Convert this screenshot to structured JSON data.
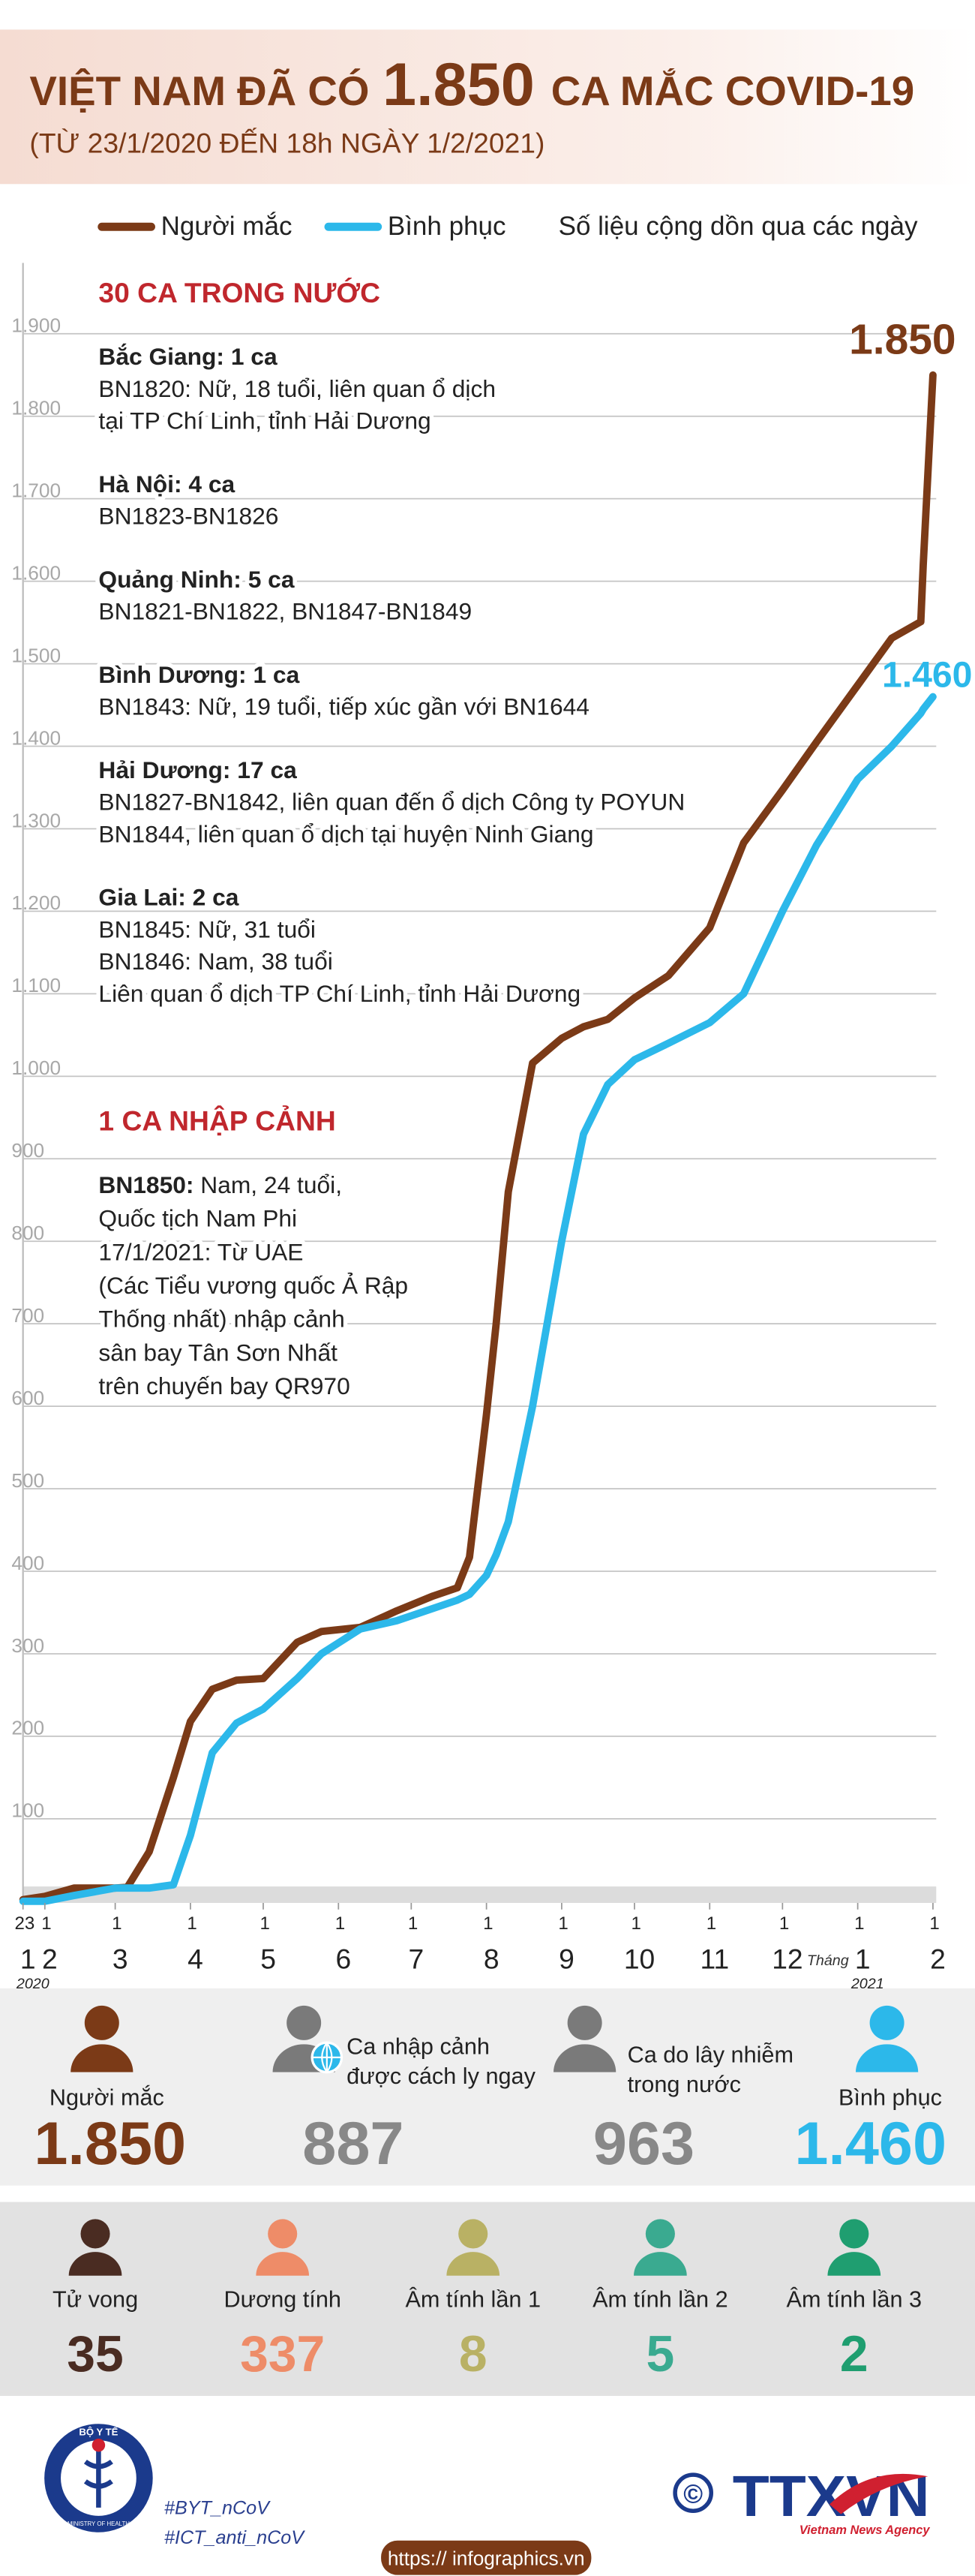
{
  "header": {
    "title_prefix": "VIỆT NAM ĐÃ CÓ",
    "title_number": "1.850",
    "title_suffix": "CA MẮC COVID-19",
    "subtitle": "(TỪ 23/1/2020 ĐẾN 18h NGÀY 1/2/2021)"
  },
  "chart_data": {
    "type": "line",
    "legend_note": "Số liệu cộng dồn qua các ngày",
    "x": [
      "2020-01-23",
      "2020-02-01",
      "2020-02-13",
      "2020-03-01",
      "2020-03-06",
      "2020-03-15",
      "2020-03-25",
      "2020-04-01",
      "2020-04-10",
      "2020-04-20",
      "2020-05-01",
      "2020-05-15",
      "2020-05-25",
      "2020-06-10",
      "2020-06-25",
      "2020-07-10",
      "2020-07-20",
      "2020-07-25",
      "2020-08-01",
      "2020-08-05",
      "2020-08-10",
      "2020-08-20",
      "2020-09-01",
      "2020-09-10",
      "2020-09-20",
      "2020-10-01",
      "2020-10-15",
      "2020-11-01",
      "2020-11-15",
      "2020-12-01",
      "2020-12-15",
      "2021-01-01",
      "2021-01-15",
      "2021-01-27",
      "2021-01-28",
      "2021-02-01"
    ],
    "series": [
      {
        "name": "Người mắc",
        "color": "#7b3a17",
        "values": [
          2,
          6,
          16,
          16,
          17,
          60,
          150,
          218,
          257,
          268,
          270,
          314,
          327,
          332,
          352,
          370,
          380,
          417,
          590,
          700,
          860,
          1016,
          1046,
          1060,
          1069,
          1095,
          1122,
          1180,
          1283,
          1347,
          1405,
          1474,
          1531,
          1551,
          1620,
          1850
        ],
        "value_labels": [
          null,
          null,
          null,
          null,
          null,
          null,
          null,
          null,
          null,
          null,
          null,
          null,
          null,
          null,
          null,
          null,
          null,
          null,
          null,
          null,
          null,
          null,
          null,
          null,
          null,
          null,
          null,
          null,
          null,
          null,
          null,
          null,
          null,
          null,
          null,
          "1.850"
        ]
      },
      {
        "name": "Bình phục",
        "color": "#2cb8ea",
        "values": [
          0,
          0,
          7,
          16,
          16,
          16,
          20,
          80,
          180,
          216,
          233,
          270,
          300,
          330,
          340,
          355,
          365,
          372,
          395,
          420,
          460,
          600,
          800,
          930,
          990,
          1020,
          1040,
          1065,
          1100,
          1200,
          1280,
          1360,
          1400,
          1440,
          1445,
          1460
        ],
        "value_labels": [
          null,
          null,
          null,
          null,
          null,
          null,
          null,
          null,
          null,
          null,
          null,
          null,
          null,
          null,
          null,
          null,
          null,
          null,
          null,
          null,
          null,
          null,
          null,
          null,
          null,
          null,
          null,
          null,
          null,
          null,
          null,
          null,
          null,
          null,
          null,
          "1.460"
        ]
      }
    ],
    "xlim": [
      "2020-01-23",
      "2021-02-01"
    ],
    "xticks": [
      {
        "value": "2020-01-23",
        "label": "23"
      },
      {
        "value": "2020-02-01",
        "label": "1"
      },
      {
        "value": "2020-03-01",
        "label": "1"
      },
      {
        "value": "2020-04-01",
        "label": "1"
      },
      {
        "value": "2020-05-01",
        "label": "1"
      },
      {
        "value": "2020-06-01",
        "label": "1"
      },
      {
        "value": "2020-07-01",
        "label": "1"
      },
      {
        "value": "2020-08-01",
        "label": "1"
      },
      {
        "value": "2020-09-01",
        "label": "1"
      },
      {
        "value": "2020-10-01",
        "label": "1"
      },
      {
        "value": "2020-11-01",
        "label": "1"
      },
      {
        "value": "2020-12-01",
        "label": "1"
      },
      {
        "value": "2021-01-01",
        "label": "1"
      },
      {
        "value": "2021-02-01",
        "label": "1"
      }
    ],
    "month_ticks": [
      {
        "value": "2020-01-23",
        "label": "1"
      },
      {
        "value": "2020-02-01",
        "label": "2"
      },
      {
        "value": "2020-03-01",
        "label": "3"
      },
      {
        "value": "2020-04-01",
        "label": "4"
      },
      {
        "value": "2020-05-01",
        "label": "5"
      },
      {
        "value": "2020-06-01",
        "label": "6"
      },
      {
        "value": "2020-07-01",
        "label": "7"
      },
      {
        "value": "2020-08-01",
        "label": "8"
      },
      {
        "value": "2020-09-01",
        "label": "9"
      },
      {
        "value": "2020-10-01",
        "label": "10"
      },
      {
        "value": "2020-11-01",
        "label": "11"
      },
      {
        "value": "2020-12-01",
        "label": "12"
      },
      {
        "value": "2021-01-01",
        "label": "1"
      },
      {
        "value": "2021-02-01",
        "label": "2"
      }
    ],
    "year_labels": [
      {
        "value": "2020-01-23",
        "label": "2020"
      },
      {
        "value": "2021-01-01",
        "label": "2021"
      }
    ],
    "x_label": "Tháng",
    "ylim": [
      0,
      1950
    ],
    "yticks": [
      100,
      200,
      300,
      400,
      500,
      600,
      700,
      800,
      900,
      {
        "value": 1000,
        "label": "1.000"
      },
      {
        "value": 1100,
        "label": "1.100"
      },
      {
        "value": 1200,
        "label": "1.200"
      },
      {
        "value": 1300,
        "label": "1.300"
      },
      {
        "value": 1400,
        "label": "1.400"
      },
      {
        "value": 1500,
        "label": "1.500"
      },
      {
        "value": 1600,
        "label": "1.600"
      },
      {
        "value": 1700,
        "label": "1.700"
      },
      {
        "value": 1800,
        "label": "1.800"
      },
      {
        "value": 1900,
        "label": "1.900"
      }
    ],
    "grid": true
  },
  "domestic": {
    "heading": "30 CA TRONG NƯỚC",
    "regions": [
      {
        "name": "Bắc Giang: 1 ca",
        "lines": [
          "BN1820: Nữ, 18 tuổi, liên quan ổ dịch",
          "tại TP Chí Linh, tỉnh Hải Dương"
        ]
      },
      {
        "name": "Hà Nội: 4 ca",
        "lines": [
          "BN1823-BN1826"
        ]
      },
      {
        "name": "Quảng Ninh: 5 ca",
        "lines": [
          "BN1821-BN1822, BN1847-BN1849"
        ]
      },
      {
        "name": "Bình Dương: 1 ca",
        "lines": [
          "BN1843: Nữ, 19 tuổi, tiếp xúc gần với BN1644"
        ]
      },
      {
        "name": "Hải Dương: 17 ca",
        "lines": [
          "BN1827-BN1842, liên quan đến ổ dịch Công ty POYUN",
          "BN1844, liên quan ổ dịch tại huyện Ninh Giang"
        ]
      },
      {
        "name": "Gia Lai: 2 ca",
        "lines": [
          "BN1845: Nữ, 31 tuổi",
          "BN1846: Nam, 38 tuổi",
          "Liên quan ổ dịch TP Chí Linh, tỉnh Hải Dương"
        ]
      }
    ]
  },
  "imported": {
    "heading": "1 CA NHẬP CẢNH",
    "case_id": "BN1850:",
    "lines": [
      "Nam, 24 tuổi,",
      "Quốc tịch Nam Phi",
      "17/1/2021: Từ UAE",
      "(Các Tiểu vương quốc Ả Rập",
      "Thống nhất) nhập cảnh",
      "sân bay Tân Sơn Nhất",
      "trên chuyến bay QR970"
    ]
  },
  "summary": [
    {
      "label": [
        "Người mắc"
      ],
      "value": "1.850"
    },
    {
      "label": [
        "Ca nhập cảnh",
        "được cách ly ngay"
      ],
      "value": "887"
    },
    {
      "label": [
        "Ca do lây nhiễm",
        "trong nước"
      ],
      "value": "963"
    },
    {
      "label": [
        "Bình phục"
      ],
      "value": "1.460"
    }
  ],
  "status": [
    {
      "label": "Tử vong",
      "value": "35"
    },
    {
      "label": "Dương tính",
      "value": "337"
    },
    {
      "label": "Âm tính lần 1",
      "value": "8"
    },
    {
      "label": "Âm tính lần 2",
      "value": "5"
    },
    {
      "label": "Âm tính lần 3",
      "value": "2"
    }
  ],
  "footer": {
    "logo_top": "BỘ Y TẾ",
    "logo_bottom": "MINISTRY OF HEALTH",
    "hashtags": [
      "#BYT_nCoV",
      "#ICT_anti_nCoV"
    ],
    "copyright": "©",
    "agency": "TTXVN",
    "agency_sub": "Vietnam News Agency",
    "url": "https:// infographics.vn"
  }
}
